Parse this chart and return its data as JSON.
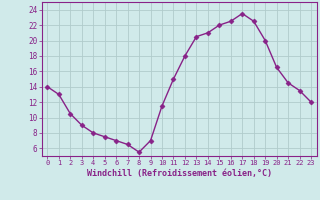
{
  "x": [
    0,
    1,
    2,
    3,
    4,
    5,
    6,
    7,
    8,
    9,
    10,
    11,
    12,
    13,
    14,
    15,
    16,
    17,
    18,
    19,
    20,
    21,
    22,
    23
  ],
  "y": [
    14,
    13,
    10.5,
    9,
    8,
    7.5,
    7,
    6.5,
    5.5,
    7,
    11.5,
    15,
    18,
    20.5,
    21,
    22,
    22.5,
    23.5,
    22.5,
    20,
    16.5,
    14.5,
    13.5,
    12
  ],
  "line_color": "#882288",
  "marker": "D",
  "marker_size": 2.5,
  "bg_color": "#d0eaea",
  "grid_color": "#b0cccc",
  "xlabel": "Windchill (Refroidissement éolien,°C)",
  "xlabel_color": "#882288",
  "tick_color": "#882288",
  "ylim": [
    5,
    25
  ],
  "yticks": [
    6,
    8,
    10,
    12,
    14,
    16,
    18,
    20,
    22,
    24
  ],
  "xticks": [
    0,
    1,
    2,
    3,
    4,
    5,
    6,
    7,
    8,
    9,
    10,
    11,
    12,
    13,
    14,
    15,
    16,
    17,
    18,
    19,
    20,
    21,
    22,
    23
  ],
  "xtick_labels": [
    "0",
    "1",
    "2",
    "3",
    "4",
    "5",
    "6",
    "7",
    "8",
    "9",
    "10",
    "11",
    "12",
    "13",
    "14",
    "15",
    "16",
    "17",
    "18",
    "19",
    "20",
    "21",
    "22",
    "23"
  ],
  "line_width": 1.0
}
